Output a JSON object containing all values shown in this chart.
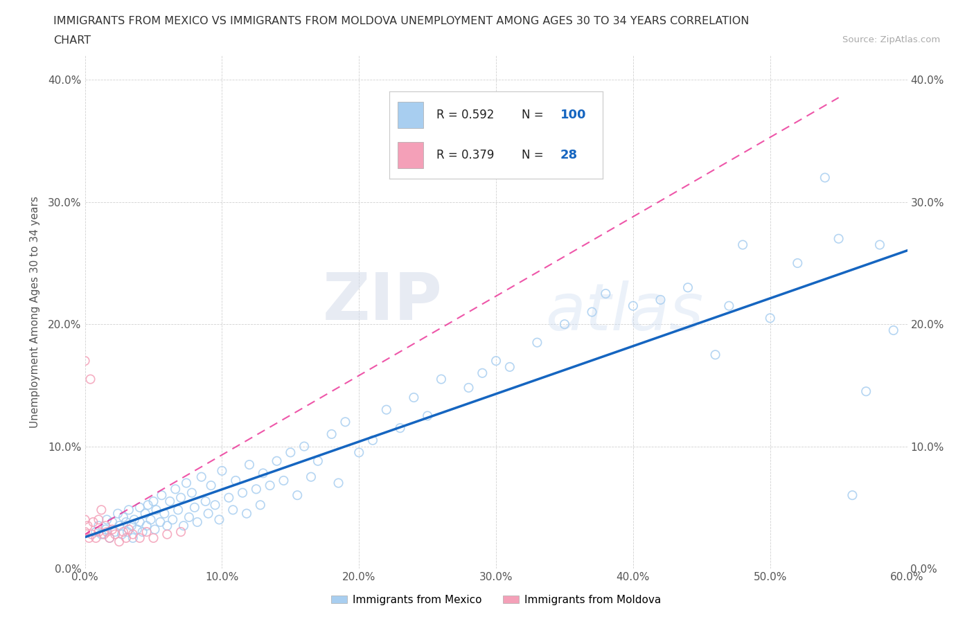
{
  "title_line1": "IMMIGRANTS FROM MEXICO VS IMMIGRANTS FROM MOLDOVA UNEMPLOYMENT AMONG AGES 30 TO 34 YEARS CORRELATION",
  "title_line2": "CHART",
  "source_text": "Source: ZipAtlas.com",
  "ylabel": "Unemployment Among Ages 30 to 34 years",
  "xlim": [
    0.0,
    0.6
  ],
  "ylim": [
    0.0,
    0.42
  ],
  "xticks": [
    0.0,
    0.1,
    0.2,
    0.3,
    0.4,
    0.5,
    0.6
  ],
  "xticklabels": [
    "0.0%",
    "10.0%",
    "20.0%",
    "30.0%",
    "40.0%",
    "50.0%",
    "60.0%"
  ],
  "yticks": [
    0.0,
    0.1,
    0.2,
    0.3,
    0.4
  ],
  "yticklabels": [
    "0.0%",
    "10.0%",
    "20.0%",
    "30.0%",
    "40.0%"
  ],
  "mexico_color": "#a8cef0",
  "moldova_color": "#f4a0b8",
  "mexico_R": 0.592,
  "mexico_N": 100,
  "moldova_R": 0.379,
  "moldova_N": 28,
  "mexico_trend_color": "#1565C0",
  "moldova_trend_color": "#e91e8c",
  "legend_label_mexico": "Immigrants from Mexico",
  "legend_label_moldova": "Immigrants from Moldova",
  "watermark_zip": "ZIP",
  "watermark_atlas": "atlas",
  "mexico_x": [
    0.008,
    0.01,
    0.012,
    0.015,
    0.016,
    0.018,
    0.02,
    0.022,
    0.024,
    0.025,
    0.027,
    0.028,
    0.03,
    0.031,
    0.032,
    0.034,
    0.035,
    0.036,
    0.038,
    0.04,
    0.04,
    0.042,
    0.044,
    0.045,
    0.046,
    0.048,
    0.05,
    0.051,
    0.052,
    0.055,
    0.056,
    0.058,
    0.06,
    0.062,
    0.064,
    0.066,
    0.068,
    0.07,
    0.072,
    0.074,
    0.076,
    0.078,
    0.08,
    0.082,
    0.085,
    0.088,
    0.09,
    0.092,
    0.095,
    0.098,
    0.1,
    0.105,
    0.108,
    0.11,
    0.115,
    0.118,
    0.12,
    0.125,
    0.128,
    0.13,
    0.135,
    0.14,
    0.145,
    0.15,
    0.155,
    0.16,
    0.165,
    0.17,
    0.18,
    0.185,
    0.19,
    0.2,
    0.21,
    0.22,
    0.23,
    0.24,
    0.25,
    0.26,
    0.28,
    0.29,
    0.3,
    0.31,
    0.33,
    0.35,
    0.37,
    0.38,
    0.4,
    0.42,
    0.44,
    0.46,
    0.47,
    0.48,
    0.5,
    0.52,
    0.54,
    0.55,
    0.56,
    0.57,
    0.58,
    0.59
  ],
  "mexico_y": [
    0.03,
    0.035,
    0.028,
    0.032,
    0.04,
    0.025,
    0.038,
    0.03,
    0.045,
    0.035,
    0.028,
    0.042,
    0.038,
    0.03,
    0.048,
    0.035,
    0.025,
    0.04,
    0.032,
    0.038,
    0.05,
    0.03,
    0.045,
    0.035,
    0.052,
    0.04,
    0.055,
    0.032,
    0.048,
    0.038,
    0.06,
    0.045,
    0.035,
    0.055,
    0.04,
    0.065,
    0.048,
    0.058,
    0.035,
    0.07,
    0.042,
    0.062,
    0.05,
    0.038,
    0.075,
    0.055,
    0.045,
    0.068,
    0.052,
    0.04,
    0.08,
    0.058,
    0.048,
    0.072,
    0.062,
    0.045,
    0.085,
    0.065,
    0.052,
    0.078,
    0.068,
    0.088,
    0.072,
    0.095,
    0.06,
    0.1,
    0.075,
    0.088,
    0.11,
    0.07,
    0.12,
    0.095,
    0.105,
    0.13,
    0.115,
    0.14,
    0.125,
    0.155,
    0.148,
    0.16,
    0.17,
    0.165,
    0.185,
    0.2,
    0.21,
    0.225,
    0.215,
    0.22,
    0.23,
    0.175,
    0.215,
    0.265,
    0.205,
    0.25,
    0.32,
    0.27,
    0.06,
    0.145,
    0.265,
    0.195
  ],
  "moldova_x": [
    0.0,
    0.0,
    0.0,
    0.002,
    0.003,
    0.004,
    0.005,
    0.006,
    0.008,
    0.01,
    0.01,
    0.012,
    0.014,
    0.015,
    0.016,
    0.018,
    0.02,
    0.022,
    0.025,
    0.028,
    0.03,
    0.032,
    0.035,
    0.04,
    0.045,
    0.05,
    0.06,
    0.07
  ],
  "moldova_y": [
    0.03,
    0.04,
    0.17,
    0.035,
    0.025,
    0.155,
    0.028,
    0.038,
    0.025,
    0.03,
    0.04,
    0.048,
    0.028,
    0.035,
    0.03,
    0.025,
    0.032,
    0.028,
    0.022,
    0.03,
    0.025,
    0.032,
    0.028,
    0.025,
    0.03,
    0.025,
    0.028,
    0.03
  ],
  "moldova_trend_start_x": -0.005,
  "moldova_trend_end_x": 0.5,
  "moldova_trend_slope": 0.65,
  "moldova_trend_intercept": 0.028
}
